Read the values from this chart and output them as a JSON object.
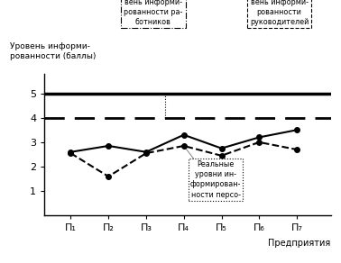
{
  "x": [
    1,
    2,
    3,
    4,
    5,
    6,
    7
  ],
  "x_labels": [
    "П₁",
    "П₂",
    "П₃",
    "П₄",
    "П₅",
    "П₆",
    "П₇"
  ],
  "line1_y": [
    2.6,
    2.85,
    2.6,
    3.3,
    2.75,
    3.2,
    3.5
  ],
  "line2_y": [
    2.55,
    1.6,
    2.55,
    2.85,
    2.45,
    3.0,
    2.7
  ],
  "hline_solid": 5.0,
  "hline_dashed": 4.0,
  "ylabel": "Уровень информи-\nрованности (баллы)",
  "xlabel": "Предприятия",
  "ylim": [
    0,
    5.8
  ],
  "xlim": [
    0.3,
    7.9
  ],
  "yticks": [
    1,
    2,
    3,
    4,
    5
  ],
  "annotation_workers_text": "Требуемый уро-\nвень информи-\nрованности ра-\nботников",
  "annotation_leaders_text": "Требуемый уро-\nвень информи-\nрованности\nруководителей",
  "annotation_real_text": "Реальные\nуровни ин-\nформирован-\nности персо-",
  "line1_color": "#000000",
  "line2_color": "#000000",
  "background_color": "#ffffff"
}
